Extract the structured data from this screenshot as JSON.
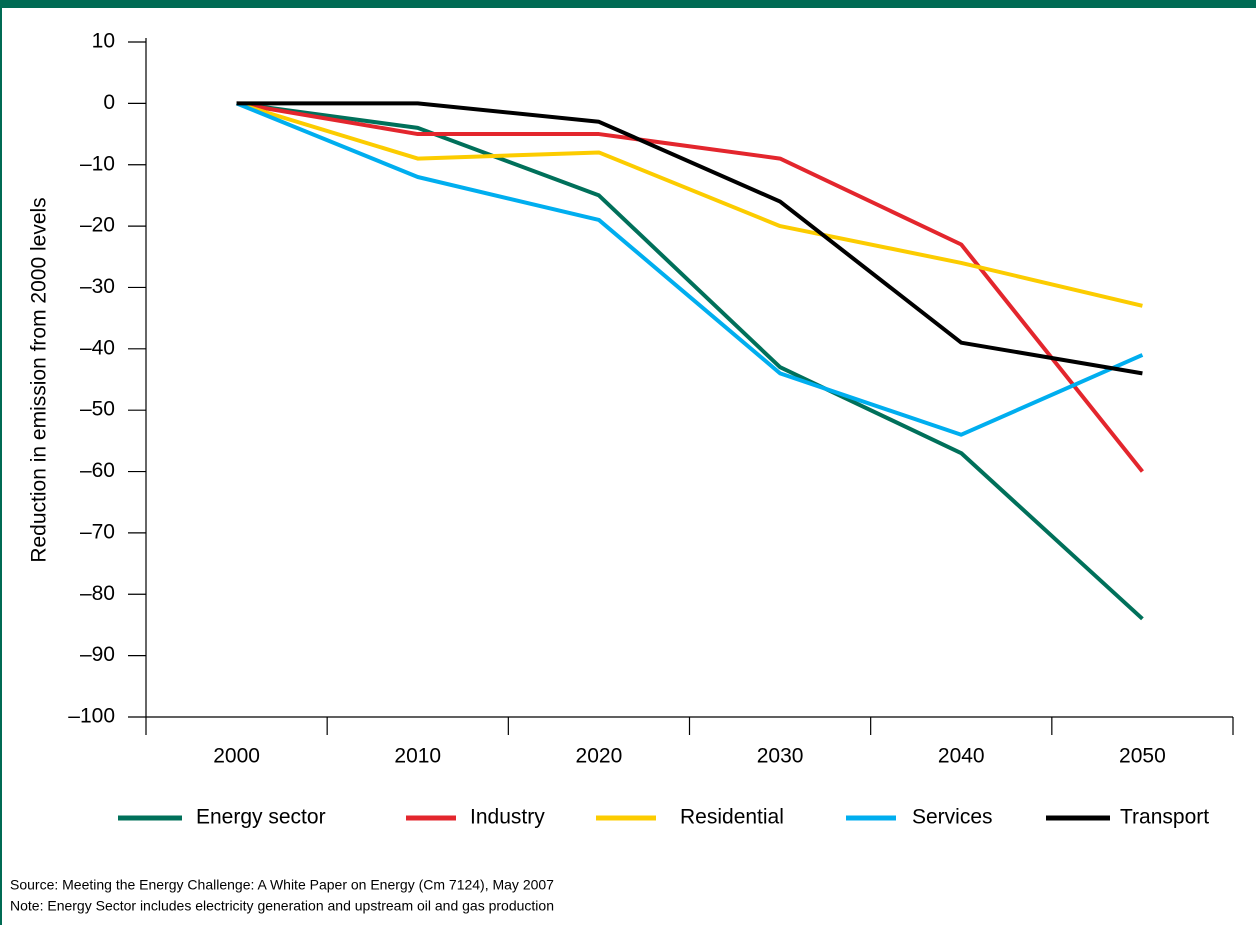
{
  "chart_data": {
    "type": "line",
    "y_label": "Reduction in emission from 2000 levels",
    "categories": [
      "2000",
      "2010",
      "2020",
      "2030",
      "2040",
      "2050"
    ],
    "series": [
      {
        "name": "Energy sector",
        "color": "#00705a",
        "values": [
          0,
          -4,
          -15,
          -43,
          -57,
          -84
        ]
      },
      {
        "name": "Industry",
        "color": "#e3262d",
        "values": [
          0,
          -5,
          -5,
          -9,
          -23,
          -60
        ]
      },
      {
        "name": "Residential",
        "color": "#fccc00",
        "values": [
          0,
          -9,
          -8,
          -20,
          -26,
          -33
        ]
      },
      {
        "name": "Services",
        "color": "#00aeef",
        "values": [
          0,
          -12,
          -19,
          -44,
          -54,
          -41
        ]
      },
      {
        "name": "Transport",
        "color": "#000000",
        "values": [
          0,
          0,
          -3,
          -16,
          -39,
          -44
        ]
      }
    ],
    "ylim": [
      -100,
      10
    ],
    "yticks": [
      10,
      0,
      {
        "value": -10,
        "label": "–10"
      },
      {
        "value": -20,
        "label": "–20"
      },
      {
        "value": -30,
        "label": "–30"
      },
      {
        "value": -40,
        "label": "–40"
      },
      {
        "value": -50,
        "label": "–50"
      },
      {
        "value": -60,
        "label": "–60"
      },
      {
        "value": -70,
        "label": "–70"
      },
      {
        "value": -80,
        "label": "–80"
      },
      {
        "value": -90,
        "label": "–90"
      },
      {
        "value": -100,
        "label": "–100"
      }
    ],
    "legend": "bottom",
    "source": "Source: Meeting the Energy Challenge: A White Paper on Energy (Cm 7124), May 2007",
    "note": "Note: Energy Sector includes electricity generation and upstream oil and gas production"
  }
}
